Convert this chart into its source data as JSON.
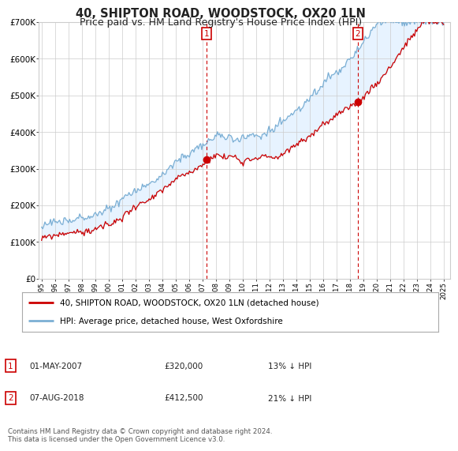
{
  "title": "40, SHIPTON ROAD, WOODSTOCK, OX20 1LN",
  "subtitle": "Price paid vs. HM Land Registry's House Price Index (HPI)",
  "ylim": [
    0,
    700000
  ],
  "yticks": [
    0,
    100000,
    200000,
    300000,
    400000,
    500000,
    600000,
    700000
  ],
  "ytick_labels": [
    "£0",
    "£100K",
    "£200K",
    "£300K",
    "£400K",
    "£500K",
    "£600K",
    "£700K"
  ],
  "hpi_color": "#7bafd4",
  "hpi_fill_color": "#ddeeff",
  "price_color": "#cc0000",
  "marker1_year": 2007.33,
  "marker1_value": 320000,
  "marker2_year": 2018.6,
  "marker2_value": 412500,
  "legend_line1": "40, SHIPTON ROAD, WOODSTOCK, OX20 1LN (detached house)",
  "legend_line2": "HPI: Average price, detached house, West Oxfordshire",
  "annotation1": [
    "1",
    "01-MAY-2007",
    "£320,000",
    "13% ↓ HPI"
  ],
  "annotation2": [
    "2",
    "07-AUG-2018",
    "£412,500",
    "21% ↓ HPI"
  ],
  "footnote": "Contains HM Land Registry data © Crown copyright and database right 2024.\nThis data is licensed under the Open Government Licence v3.0.",
  "title_fontsize": 10.5,
  "subtitle_fontsize": 9,
  "background_color": "#ffffff",
  "xlim_start": 1994.8,
  "xlim_end": 2025.5
}
